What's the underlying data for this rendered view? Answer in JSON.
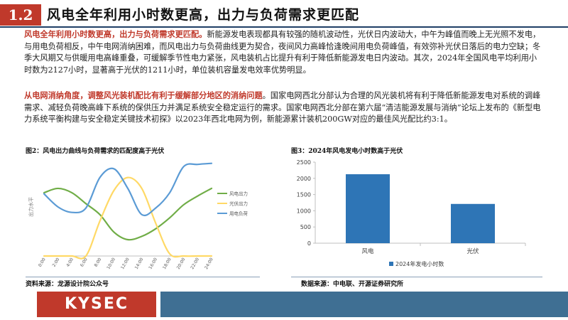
{
  "header": {
    "section_number": "1.2",
    "title": "风电全年利用小时数更高，出力与负荷需求更匹配"
  },
  "paragraph1": {
    "lead": "风电全年利用小时数更高，出力与负荷需求更匹配。",
    "body": "新能源发电表现都具有较强的随机波动性，光伏日内波动大，中午为峰值而晚上无光照不发电，与用电负荷相反，中午电网消纳困难，而风电出力与负荷曲线更为契合，夜间风力高峰恰逢晚间用电负荷峰值，有效弥补光伏日落后的电力空缺；冬季大风期又与供暖用电高峰重叠，可缓解季节性电力紧张，风电装机占比提升有利于降低新能源发电日内波动。其次，2024年全国风电平均利用小时数为2127小时，显著高于光伏的1211小时，单位装机容量发电效率优势明显。"
  },
  "paragraph2": {
    "lead": "从电网消纳角度，调整风光装机配比有利于缓解部分地区的消纳问题",
    "body": "。国家电网西北分部认为合理的风光装机将有利于降低新能源发电对系统的调峰需求、减轻负荷晚高峰下系统的保供压力并满足系统安全稳定运行的需求。国家电网西北分部在第六届“清洁能源发展与消纳”论坛上发布的《新型电力系统平衡构建与安全稳定关键技术初探》以2023年西北电网为例，新能源累计装机200GW对应的最佳风光配比约3:1。"
  },
  "figure2": {
    "title": "图2：风电出力曲线与负荷需求的匹配度高于光伏",
    "source": "资料来源：龙源设计院公众号"
  },
  "figure3": {
    "title": "图3：2024年风电发电小时数高于光伏",
    "source": "数据来源：中电联、开源证券研究所"
  },
  "footer": {
    "logo": "KYSEC"
  },
  "colors": {
    "accent_red": "#c0392b",
    "navy": "#1f3f66",
    "footer_blue": "#3f6f93",
    "wind": "#70ad47",
    "solar": "#ffd966",
    "load": "#5b9bd5",
    "bar": "#2e75b6"
  },
  "chart_data": [
    {
      "type": "line",
      "ylabel": "出力水平",
      "x": [
        "0:00",
        "2:00",
        "4:00",
        "6:00",
        "8:00",
        "10:00",
        "12:00",
        "14:00",
        "16:00",
        "18:00",
        "20:00",
        "22:00",
        "24:00"
      ],
      "series": [
        {
          "name": "风电出力",
          "color": "#70ad47",
          "values": [
            58,
            62,
            58,
            48,
            38,
            22,
            15,
            18,
            25,
            35,
            47,
            55,
            62
          ]
        },
        {
          "name": "光伏出力",
          "color": "#ffd966",
          "values": [
            0,
            0,
            0,
            0,
            32,
            60,
            72,
            62,
            30,
            2,
            0,
            0,
            0
          ]
        },
        {
          "name": "用电负荷",
          "color": "#5b9bd5",
          "values": [
            57,
            45,
            40,
            44,
            72,
            80,
            62,
            38,
            44,
            58,
            82,
            84,
            85
          ]
        }
      ],
      "ylim": [
        0,
        90
      ],
      "legend": "right"
    },
    {
      "type": "bar",
      "categories": [
        "风电",
        "光伏"
      ],
      "values": [
        2127,
        1211
      ],
      "series_name": "2024年发电小时数",
      "yticks": [
        0,
        500,
        1000,
        1500,
        2000,
        2500
      ],
      "ylim": [
        0,
        2500
      ],
      "grid": false,
      "legend": "bottom"
    }
  ]
}
